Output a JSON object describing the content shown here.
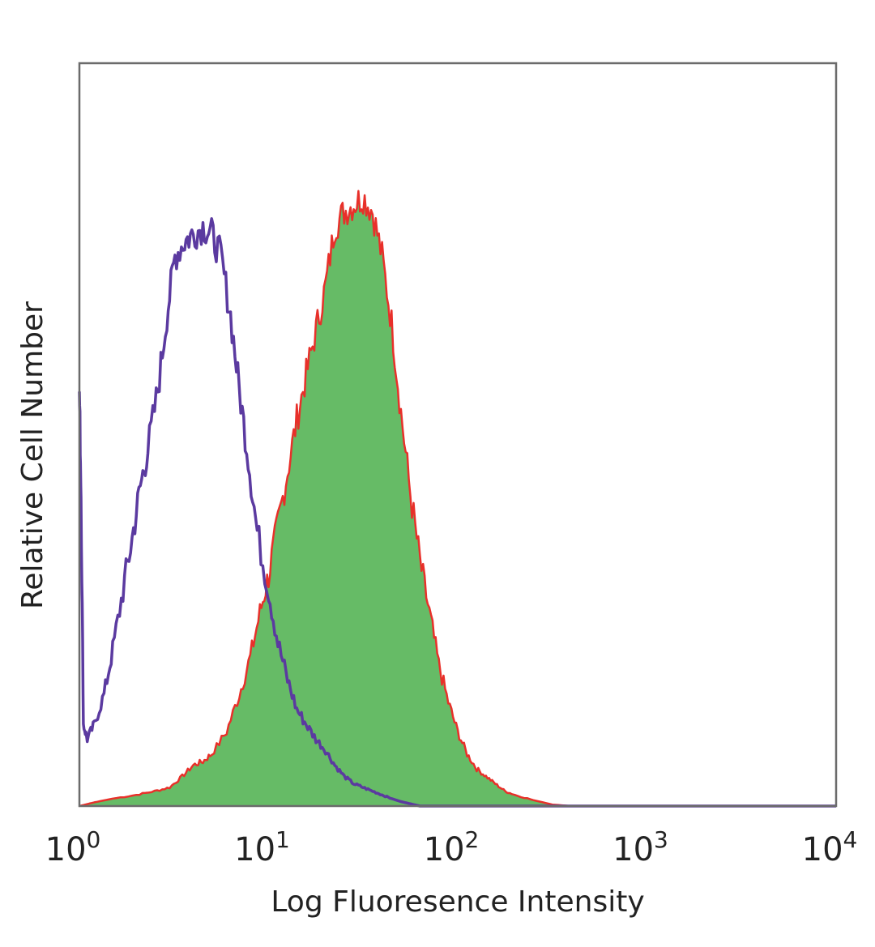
{
  "chart_data": {
    "type": "area",
    "xlabel": "Log Fluoresence Intensity",
    "ylabel": "Relative Cell Number",
    "x_scale": "log",
    "xlim": [
      1,
      10000
    ],
    "ylim": [
      0,
      1.0
    ],
    "grid": false,
    "x_ticks": [
      {
        "base": "10",
        "exp": "0",
        "value": 1
      },
      {
        "base": "10",
        "exp": "1",
        "value": 10
      },
      {
        "base": "10",
        "exp": "2",
        "value": 100
      },
      {
        "base": "10",
        "exp": "3",
        "value": 1000
      },
      {
        "base": "10",
        "exp": "4",
        "value": 10000
      }
    ],
    "series": [
      {
        "color": "#5b3aa0",
        "fill": "none",
        "x": [
          1.0,
          1.02,
          1.05,
          1.1,
          1.2,
          1.35,
          1.5,
          1.7,
          1.9,
          2.1,
          2.3,
          2.6,
          2.9,
          3.2,
          3.6,
          4.0,
          4.5,
          5.0,
          5.6,
          6.3,
          7.0,
          7.8,
          8.7,
          10.0,
          11.2,
          12.6,
          14.1,
          15.8,
          17.8,
          20.0,
          22.4,
          25.1,
          28.2,
          31.6,
          35.5,
          39.8,
          44.7,
          50.1,
          56.2,
          63.1,
          100.0,
          1000.0,
          10000.0
        ],
        "y": [
          0.56,
          0.42,
          0.11,
          0.09,
          0.11,
          0.15,
          0.21,
          0.29,
          0.36,
          0.43,
          0.48,
          0.56,
          0.66,
          0.74,
          0.76,
          0.77,
          0.78,
          0.77,
          0.74,
          0.66,
          0.56,
          0.47,
          0.37,
          0.29,
          0.22,
          0.17,
          0.13,
          0.11,
          0.09,
          0.075,
          0.055,
          0.04,
          0.03,
          0.025,
          0.02,
          0.015,
          0.01,
          0.006,
          0.003,
          0.0,
          0.0,
          0.0,
          0.0
        ]
      },
      {
        "color": "#e8302a",
        "fill": "#66bb66",
        "x": [
          1.0,
          1.2,
          1.5,
          2.0,
          2.5,
          3.0,
          3.5,
          4.0,
          4.5,
          5.0,
          6.0,
          7.0,
          8.0,
          9.0,
          10.0,
          11.2,
          12.6,
          14.1,
          15.8,
          17.8,
          20.0,
          22.4,
          25.1,
          28.2,
          31.6,
          35.5,
          39.8,
          44.7,
          50.1,
          56.2,
          63.1,
          70.8,
          79.4,
          89.1,
          100.0,
          112.0,
          126.0,
          141.0,
          158.0,
          178.0,
          200.0,
          251.0,
          316.0,
          398.0,
          1000.0,
          10000.0
        ],
        "y": [
          0.0,
          0.005,
          0.01,
          0.015,
          0.02,
          0.025,
          0.04,
          0.055,
          0.06,
          0.07,
          0.1,
          0.15,
          0.2,
          0.26,
          0.31,
          0.38,
          0.45,
          0.52,
          0.58,
          0.64,
          0.7,
          0.78,
          0.8,
          0.81,
          0.82,
          0.8,
          0.74,
          0.65,
          0.53,
          0.42,
          0.33,
          0.26,
          0.19,
          0.14,
          0.1,
          0.07,
          0.05,
          0.04,
          0.03,
          0.02,
          0.015,
          0.008,
          0.002,
          0.0,
          0.0,
          0.0
        ]
      }
    ]
  }
}
